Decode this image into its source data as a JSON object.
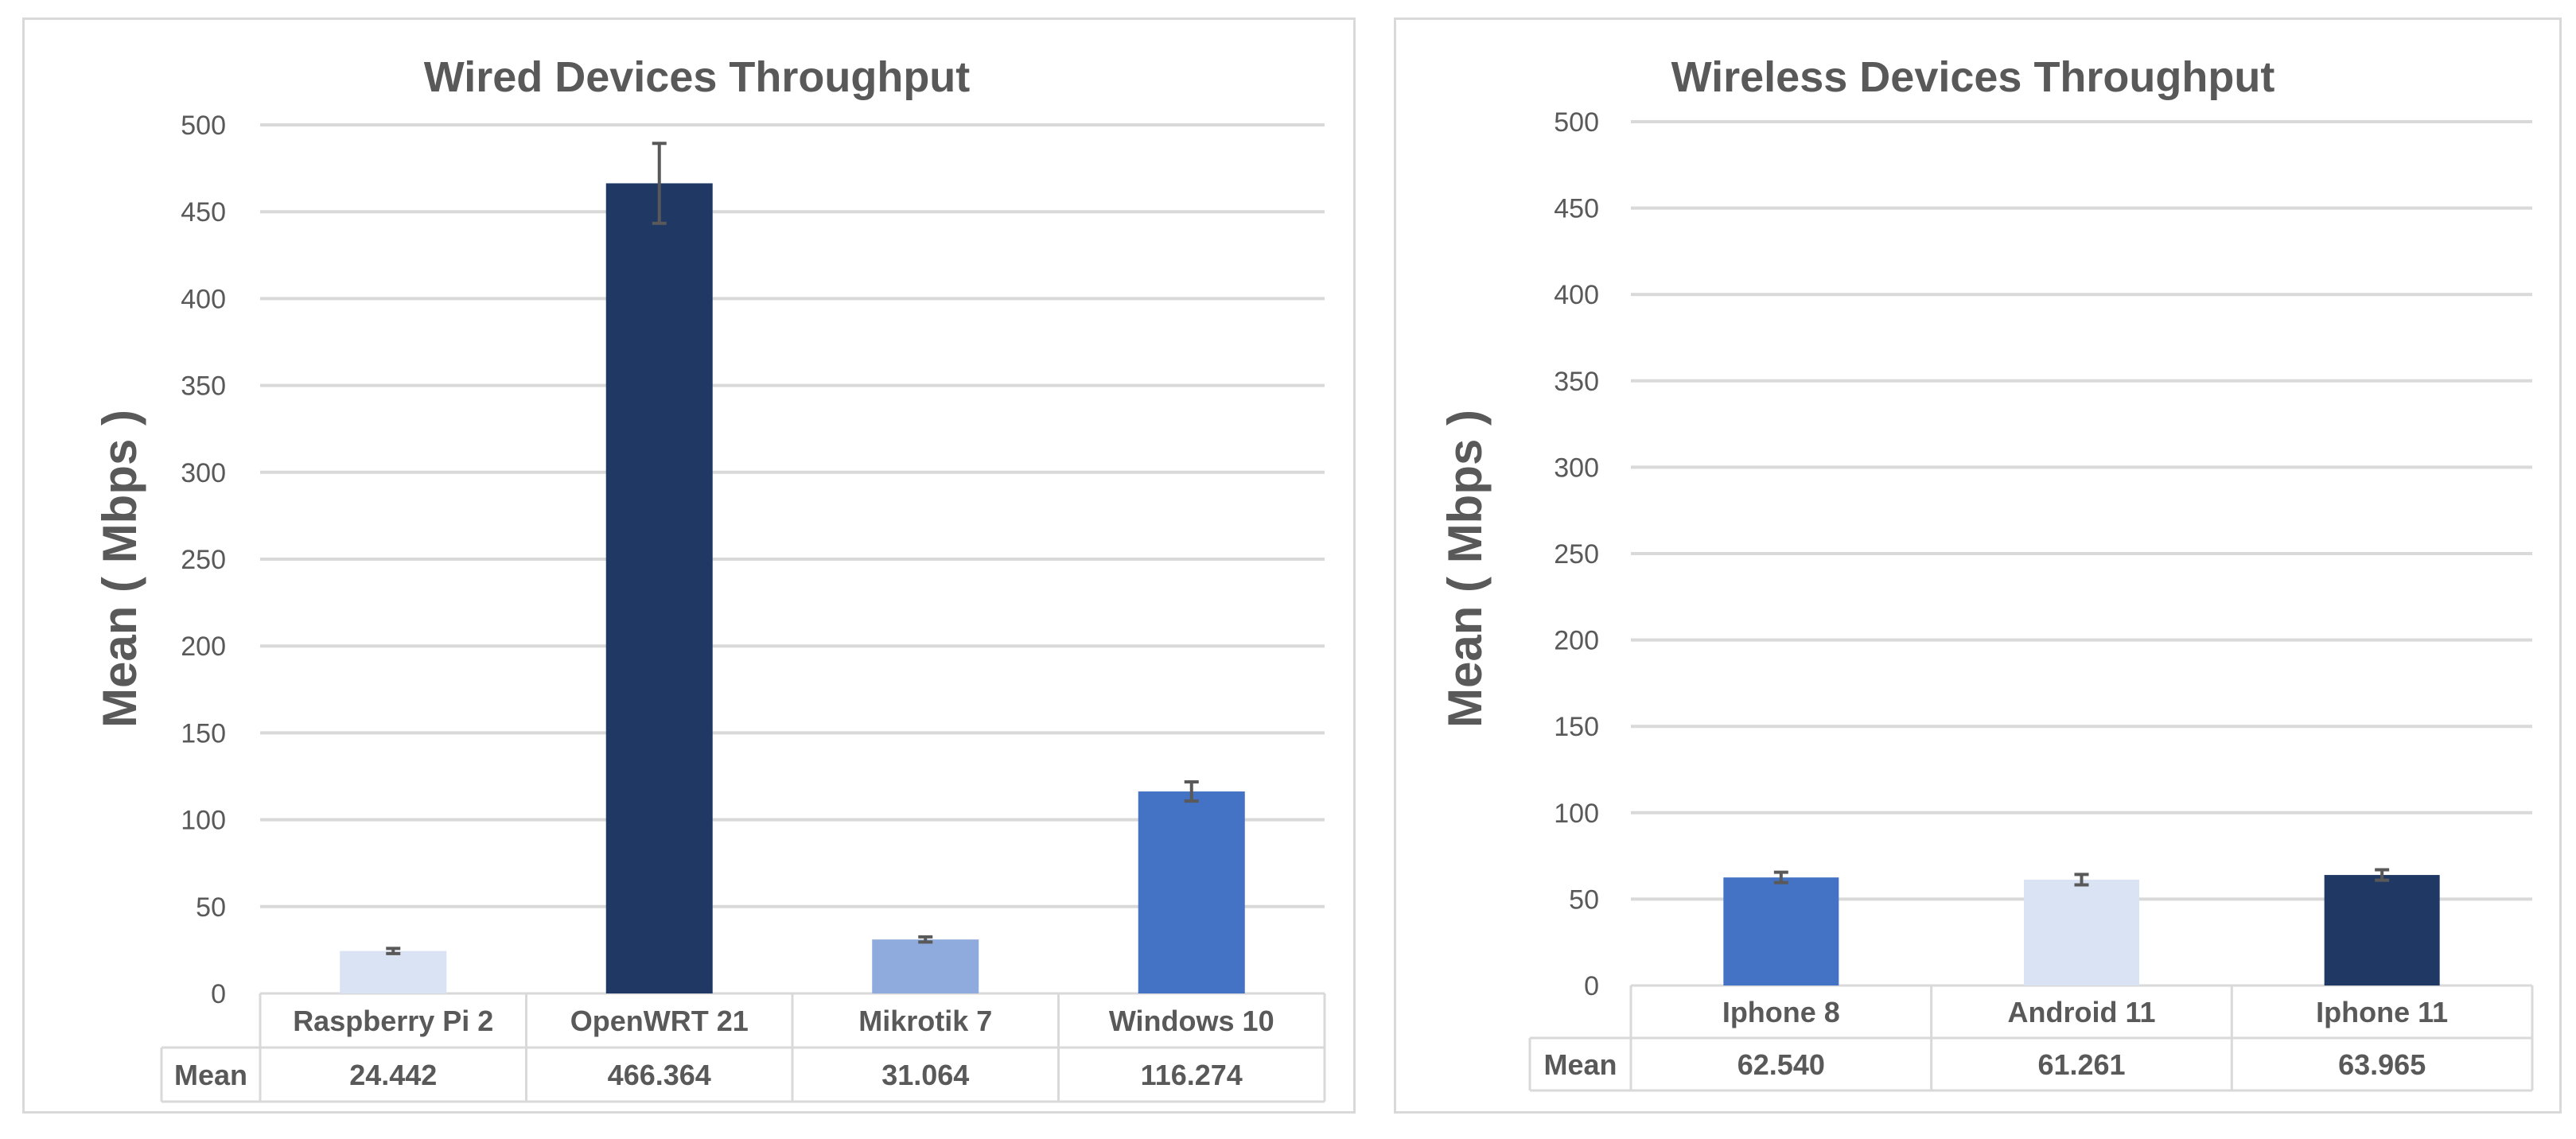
{
  "chart_data": [
    {
      "type": "bar",
      "title": "Wired Devices Throughput",
      "ylabel": "Mean ( Mbps )",
      "ylim": [
        0,
        500
      ],
      "yticks": [
        0,
        50,
        100,
        150,
        200,
        250,
        300,
        350,
        400,
        450,
        500
      ],
      "grid": true,
      "categories": [
        "Raspberry Pi 2",
        "OpenWRT 21",
        "Mikrotik 7",
        "Windows 10"
      ],
      "values": [
        24.442,
        466.364,
        31.064,
        116.274
      ],
      "value_labels": [
        "24.442",
        "466.364",
        "31.064",
        "116.274"
      ],
      "error": [
        1.5,
        23,
        1.5,
        5.5
      ],
      "colors": [
        "#dae3f3",
        "#203864",
        "#8faadc",
        "#4472c4"
      ],
      "table_row_label": "Mean"
    },
    {
      "type": "bar",
      "title": "Wireless Devices Throughput",
      "ylabel": "Mean ( Mbps )",
      "ylim": [
        0,
        500
      ],
      "yticks": [
        0,
        50,
        100,
        150,
        200,
        250,
        300,
        350,
        400,
        450,
        500
      ],
      "grid": true,
      "categories": [
        "Iphone 8",
        "Android 11",
        "Iphone 11"
      ],
      "values": [
        62.54,
        61.261,
        63.965
      ],
      "value_labels": [
        "62.540",
        "61.261",
        "63.965"
      ],
      "error": [
        3,
        3,
        3
      ],
      "colors": [
        "#4472c4",
        "#dae3f3",
        "#203864"
      ],
      "table_row_label": "Mean"
    }
  ]
}
